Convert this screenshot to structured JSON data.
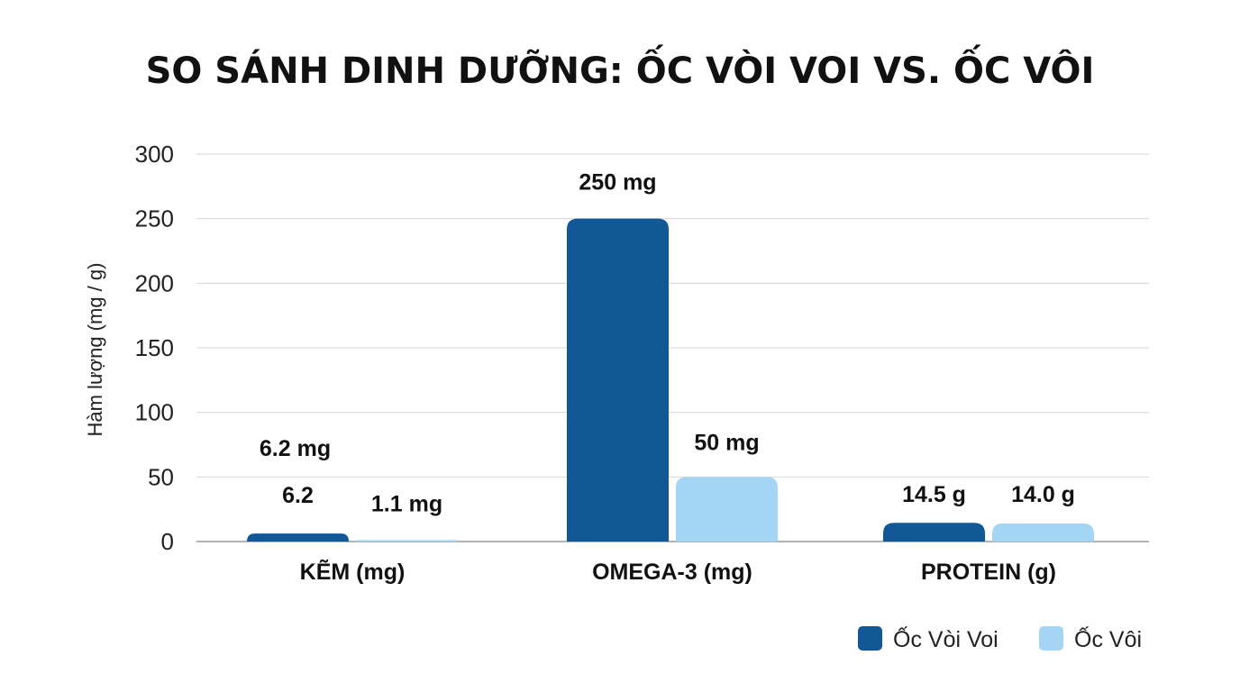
{
  "chart_data": {
    "type": "bar",
    "title": "SO SÁNH DINH DƯỠNG: ỐC VÒI VOI VS. ỐC VÔI",
    "ylabel": "Hàm lượng (mg / g)",
    "xlabel": "",
    "ylim": [
      0,
      300
    ],
    "yticks": [
      0,
      50,
      100,
      150,
      200,
      250,
      300
    ],
    "grid": true,
    "legend_position": "bottom-right",
    "categories": [
      "KẼM (mg)",
      "OMEGA-3 (mg)",
      "PROTEIN (g)"
    ],
    "series": [
      {
        "name": "Ốc Vòi Voi",
        "color": "#135896",
        "values": [
          6.2,
          250,
          14.5
        ],
        "labels": [
          "6.2",
          "250 mg",
          "14.5 g"
        ]
      },
      {
        "name": "Ốc Vôi",
        "color": "#a5d5f4",
        "values": [
          1.1,
          50,
          14.0
        ],
        "labels": [
          "1.1 mg",
          "50 mg",
          "14.0 g"
        ]
      }
    ],
    "annotations": [
      "6.2 mg"
    ]
  }
}
